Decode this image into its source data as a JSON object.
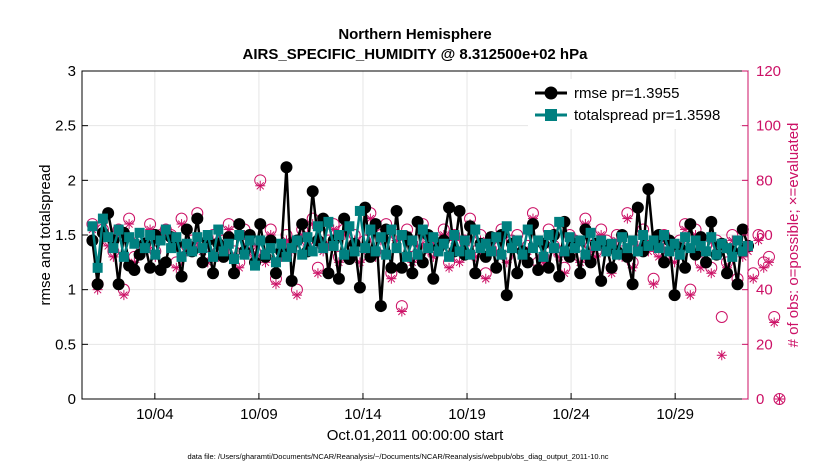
{
  "chart_data": {
    "type": "line",
    "title": "Northern Hemisphere",
    "subtitle": "AIRS_SPECIFIC_HUMIDITY @ 8.312500e+02 hPa",
    "xlabel": "Oct.01,2011 00:00:00 start",
    "ylabel": "rmse and totalspread",
    "ylabel_right": "# of obs: o=possible; ×=evaluated",
    "footnote": "data file: /Users/gharamti/Documents/NCAR/Reanalysis/~/Documents/NCAR/Reanalysis/webpub/obs_diag_output_2011-10.nc",
    "x_range": [
      0.5,
      32.5
    ],
    "ylim": [
      0,
      3
    ],
    "ylim_right": [
      0,
      120
    ],
    "x_ticks": [
      4,
      9,
      14,
      19,
      24,
      29
    ],
    "x_tick_labels": [
      "10/04",
      "10/09",
      "10/14",
      "10/19",
      "10/24",
      "10/29"
    ],
    "y_ticks": [
      0,
      0.5,
      1,
      1.5,
      2,
      2.5,
      3
    ],
    "y_tick_labels": [
      "0",
      "0.5",
      "1",
      "1.5",
      "2",
      "2.5",
      "3"
    ],
    "y_ticks_right": [
      0,
      20,
      40,
      60,
      80,
      100,
      120
    ],
    "y_tick_labels_right": [
      "0",
      "20",
      "40",
      "60",
      "80",
      "100",
      "120"
    ],
    "legend_position": "top-right",
    "colors": {
      "rmse": "#000000",
      "totalspread": "#008080",
      "obs": "#cc1166"
    },
    "series": [
      {
        "name": "rmse pr=1.3955",
        "marker": "circle",
        "values": [
          1.45,
          1.05,
          1.52,
          1.7,
          1.45,
          1.05,
          1.52,
          1.22,
          1.18,
          1.32,
          1.42,
          1.2,
          1.5,
          1.18,
          1.25,
          1.48,
          1.42,
          1.12,
          1.55,
          1.35,
          1.65,
          1.25,
          1.45,
          1.15,
          1.42,
          1.3,
          1.48,
          1.15,
          1.6,
          1.35,
          1.5,
          1.25,
          1.6,
          1.3,
          1.45,
          1.15,
          1.35,
          2.12,
          1.08,
          1.45,
          1.6,
          1.35,
          1.9,
          1.45,
          1.65,
          1.15,
          1.45,
          1.1,
          1.65,
          1.28,
          1.42,
          1.02,
          1.75,
          1.3,
          1.6,
          0.85,
          1.55,
          1.2,
          1.72,
          1.2,
          1.48,
          1.15,
          1.62,
          1.25,
          1.5,
          1.1,
          1.38,
          1.45,
          1.75,
          1.35,
          1.72,
          1.32,
          1.58,
          1.15,
          1.42,
          1.3,
          1.48,
          1.2,
          1.5,
          0.95,
          1.42,
          1.15,
          1.35,
          1.25,
          1.6,
          1.18,
          1.42,
          1.2,
          1.5,
          1.12,
          1.62,
          1.3,
          1.42,
          1.15,
          1.55,
          1.25,
          1.42,
          1.08,
          1.4,
          1.2,
          1.35,
          1.5,
          1.3,
          1.05,
          1.75,
          1.35,
          1.92,
          1.42,
          1.5,
          1.25,
          1.45,
          0.95,
          1.38,
          1.2,
          1.6,
          1.32,
          1.48,
          1.25,
          1.62,
          1.32,
          1.42,
          1.15,
          1.35,
          1.05,
          1.55,
          1.4
        ]
      },
      {
        "name": "totalspread pr=1.3598",
        "marker": "square",
        "values": [
          1.58,
          1.2,
          1.65,
          1.48,
          1.38,
          1.55,
          1.3,
          1.48,
          1.42,
          1.52,
          1.38,
          1.5,
          1.32,
          1.45,
          1.55,
          1.38,
          1.48,
          1.3,
          1.42,
          1.35,
          1.48,
          1.38,
          1.5,
          1.3,
          1.55,
          1.35,
          1.42,
          1.28,
          1.5,
          1.32,
          1.45,
          1.22,
          1.45,
          1.32,
          1.38,
          1.25,
          1.42,
          1.3,
          1.38,
          1.45,
          1.32,
          1.48,
          1.35,
          1.58,
          1.38,
          1.62,
          1.4,
          1.5,
          1.32,
          1.58,
          1.35,
          1.72,
          1.38,
          1.55,
          1.35,
          1.48,
          1.32,
          1.55,
          1.38,
          1.5,
          1.3,
          1.45,
          1.32,
          1.55,
          1.38,
          1.48,
          1.35,
          1.42,
          1.3,
          1.5,
          1.35,
          1.45,
          1.32,
          1.55,
          1.38,
          1.42,
          1.35,
          1.48,
          1.32,
          1.58,
          1.38,
          1.45,
          1.32,
          1.55,
          1.38,
          1.45,
          1.3,
          1.5,
          1.38,
          1.62,
          1.35,
          1.48,
          1.38,
          1.45,
          1.32,
          1.52,
          1.4,
          1.45,
          1.35,
          1.42,
          1.32,
          1.48,
          1.38,
          1.45,
          1.35,
          1.5,
          1.4,
          1.45,
          1.38,
          1.5,
          1.35,
          1.42,
          1.32,
          1.48,
          1.38,
          1.45,
          1.4,
          1.35,
          1.48,
          1.32,
          1.42,
          1.38,
          1.3,
          1.45,
          1.35,
          1.4
        ]
      },
      {
        "name": "# of obs possible",
        "marker": "open-circle",
        "axis": "right",
        "values": [
          64,
          42,
          62,
          58,
          54,
          62,
          40,
          66,
          52,
          58,
          56,
          64,
          54,
          60,
          62,
          60,
          50,
          66,
          56,
          58,
          68,
          56,
          52,
          60,
          54,
          58,
          64,
          54,
          50,
          62,
          56,
          54,
          80,
          52,
          62,
          44,
          54,
          60,
          56,
          40,
          62,
          58,
          66,
          48,
          56,
          58,
          64,
          52,
          62,
          54,
          60,
          52,
          58,
          68,
          54,
          60,
          64,
          46,
          60,
          34,
          62,
          52,
          58,
          64,
          56,
          54,
          58,
          62,
          50,
          60,
          52,
          58,
          66,
          54,
          60,
          46,
          58,
          56,
          62,
          52,
          58,
          60,
          54,
          56,
          68,
          50,
          52,
          62,
          56,
          54,
          48,
          60,
          58,
          52,
          66,
          56,
          54,
          62,
          58,
          48,
          60,
          54,
          68,
          50,
          58,
          62,
          56,
          44,
          54,
          60,
          56,
          52,
          58,
          64,
          40,
          62,
          50,
          56,
          48,
          58,
          30,
          50,
          60,
          44,
          54,
          56,
          46,
          60,
          50,
          52,
          30,
          0
        ]
      },
      {
        "name": "# of obs evaluated",
        "marker": "asterisk",
        "axis": "right",
        "values": [
          62,
          40,
          60,
          56,
          52,
          60,
          38,
          64,
          50,
          56,
          54,
          62,
          52,
          58,
          60,
          58,
          48,
          64,
          54,
          56,
          66,
          54,
          50,
          58,
          52,
          56,
          62,
          52,
          48,
          60,
          54,
          52,
          78,
          50,
          60,
          42,
          52,
          58,
          54,
          38,
          60,
          56,
          64,
          46,
          54,
          56,
          62,
          50,
          60,
          52,
          58,
          50,
          56,
          66,
          52,
          58,
          62,
          44,
          58,
          32,
          60,
          50,
          56,
          62,
          54,
          52,
          56,
          60,
          48,
          58,
          50,
          56,
          64,
          52,
          58,
          44,
          56,
          54,
          60,
          50,
          56,
          58,
          52,
          54,
          66,
          48,
          50,
          60,
          54,
          52,
          46,
          58,
          56,
          50,
          64,
          54,
          52,
          60,
          56,
          46,
          58,
          52,
          66,
          48,
          56,
          60,
          54,
          42,
          52,
          58,
          54,
          50,
          56,
          62,
          38,
          60,
          48,
          54,
          46,
          56,
          16,
          48,
          58,
          42,
          52,
          54,
          44,
          58,
          48,
          50,
          28,
          0
        ]
      }
    ]
  }
}
